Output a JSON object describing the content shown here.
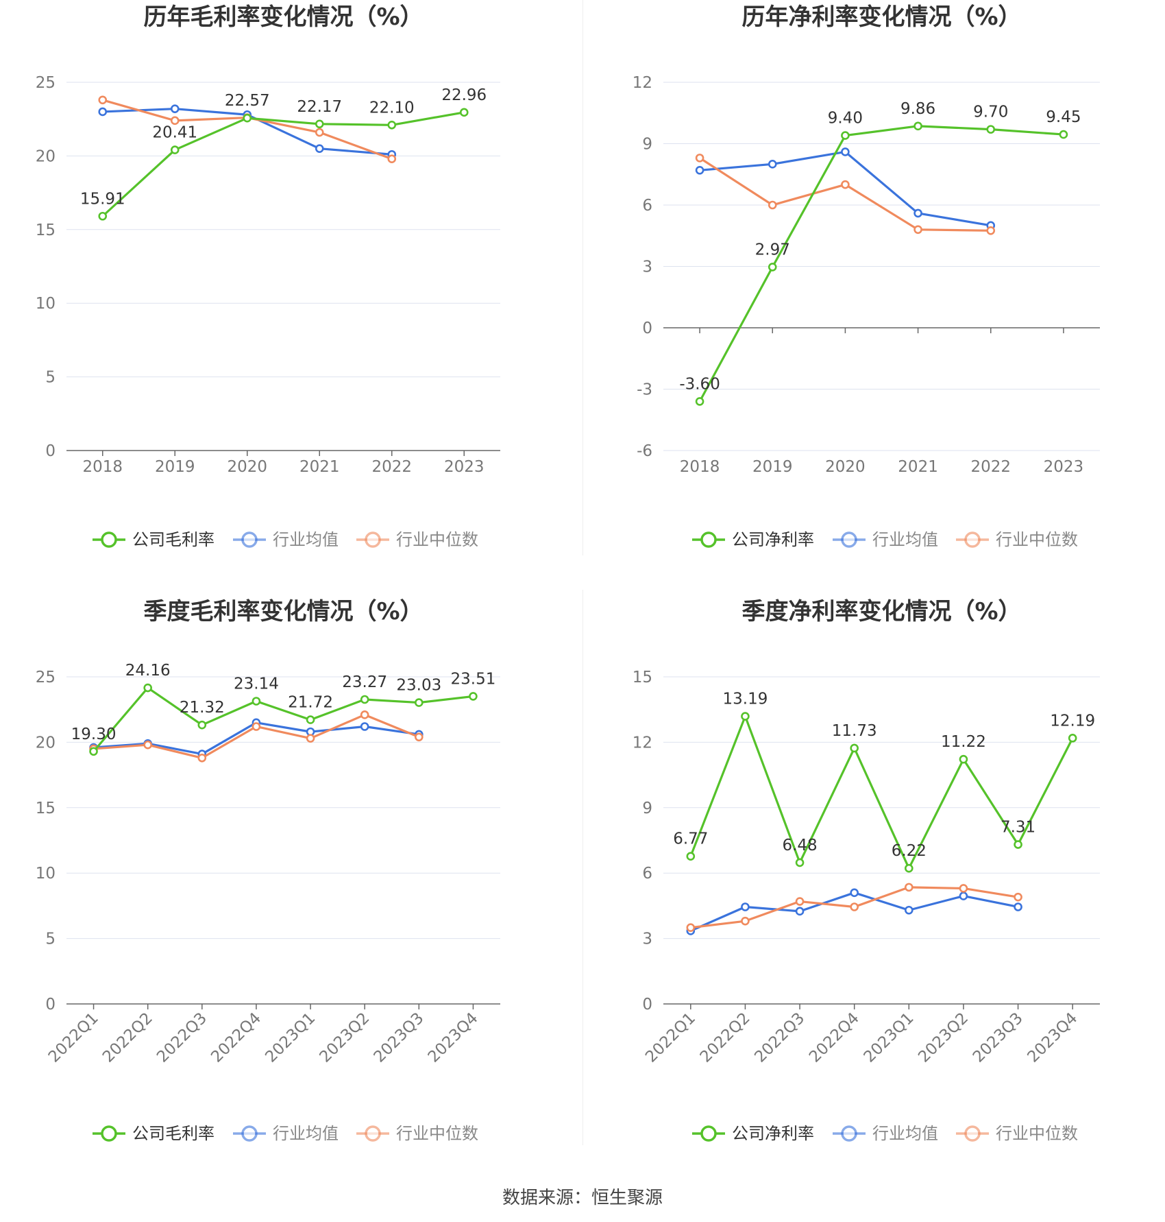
{
  "colors": {
    "company": "#55c22a",
    "industry_avg": "#3a73dc",
    "industry_median": "#f08a5d",
    "grid": "#dde2ef",
    "axis": "#666666",
    "tick_text": "#777777",
    "title_text": "#333333",
    "label_text": "#333333"
  },
  "source": {
    "text": "数据来源：恒生聚源"
  },
  "chart_data": [
    {
      "type": "line",
      "title": "历年毛利率变化情况（%）",
      "categories": [
        "2018",
        "2019",
        "2020",
        "2021",
        "2022",
        "2023"
      ],
      "ylim": [
        0,
        25
      ],
      "yticks": [
        0,
        5,
        10,
        15,
        20,
        25
      ],
      "grid": true,
      "legend_position": "bottom",
      "x_label_rotation": "none",
      "series": [
        {
          "name": "公司毛利率",
          "key": "company",
          "values": [
            15.91,
            20.41,
            22.57,
            22.17,
            22.1,
            22.96
          ],
          "labels": [
            "15.91",
            "20.41",
            "22.57",
            "22.17",
            "22.10",
            "22.96"
          ]
        },
        {
          "name": "行业均值",
          "key": "industry_avg",
          "values": [
            23.0,
            23.2,
            22.8,
            20.5,
            20.1,
            null
          ]
        },
        {
          "name": "行业中位数",
          "key": "industry_median",
          "values": [
            23.8,
            22.4,
            22.6,
            21.6,
            19.8,
            null
          ]
        }
      ]
    },
    {
      "type": "line",
      "title": "历年净利率变化情况（%）",
      "categories": [
        "2018",
        "2019",
        "2020",
        "2021",
        "2022",
        "2023"
      ],
      "ylim": [
        -6,
        12
      ],
      "yticks": [
        -6,
        -3,
        0,
        3,
        6,
        9,
        12
      ],
      "grid": true,
      "legend_position": "bottom",
      "x_label_rotation": "none",
      "series": [
        {
          "name": "公司净利率",
          "key": "company",
          "values": [
            -3.6,
            2.97,
            9.4,
            9.86,
            9.7,
            9.45
          ],
          "labels": [
            "-3.60",
            "2.97",
            "9.40",
            "9.86",
            "9.70",
            "9.45"
          ]
        },
        {
          "name": "行业均值",
          "key": "industry_avg",
          "values": [
            7.7,
            8.0,
            8.6,
            5.6,
            5.0,
            null
          ]
        },
        {
          "name": "行业中位数",
          "key": "industry_median",
          "values": [
            8.3,
            6.0,
            7.0,
            4.8,
            4.75,
            null
          ]
        }
      ]
    },
    {
      "type": "line",
      "title": "季度毛利率变化情况（%）",
      "categories": [
        "2022Q1",
        "2022Q2",
        "2022Q3",
        "2022Q4",
        "2023Q1",
        "2023Q2",
        "2023Q3",
        "2023Q4"
      ],
      "ylim": [
        0,
        25
      ],
      "yticks": [
        0,
        5,
        10,
        15,
        20,
        25
      ],
      "grid": true,
      "legend_position": "bottom",
      "x_label_rotation": "rotated",
      "series": [
        {
          "name": "公司毛利率",
          "key": "company",
          "values": [
            19.3,
            24.16,
            21.32,
            23.14,
            21.72,
            23.27,
            23.03,
            23.51
          ],
          "labels": [
            "19.30",
            "24.16",
            "21.32",
            "23.14",
            "21.72",
            "23.27",
            "23.03",
            "23.51"
          ]
        },
        {
          "name": "行业均值",
          "key": "industry_avg",
          "values": [
            19.6,
            19.9,
            19.1,
            21.5,
            20.8,
            21.2,
            20.6,
            null
          ]
        },
        {
          "name": "行业中位数",
          "key": "industry_median",
          "values": [
            19.5,
            19.8,
            18.8,
            21.2,
            20.3,
            22.1,
            20.4,
            null
          ]
        }
      ]
    },
    {
      "type": "line",
      "title": "季度净利率变化情况（%）",
      "categories": [
        "2022Q1",
        "2022Q2",
        "2022Q3",
        "2022Q4",
        "2023Q1",
        "2023Q2",
        "2023Q3",
        "2023Q4"
      ],
      "ylim": [
        0,
        15
      ],
      "yticks": [
        0,
        3,
        6,
        9,
        12,
        15
      ],
      "grid": true,
      "legend_position": "bottom",
      "x_label_rotation": "rotated",
      "series": [
        {
          "name": "公司净利率",
          "key": "company",
          "values": [
            6.77,
            13.19,
            6.48,
            11.73,
            6.22,
            11.22,
            7.31,
            12.19
          ],
          "labels": [
            "6.77",
            "13.19",
            "6.48",
            "11.73",
            "6.22",
            "11.22",
            "7.31",
            "12.19"
          ]
        },
        {
          "name": "行业均值",
          "key": "industry_avg",
          "values": [
            3.35,
            4.45,
            4.25,
            5.1,
            4.3,
            4.95,
            4.45,
            null
          ]
        },
        {
          "name": "行业中位数",
          "key": "industry_median",
          "values": [
            3.5,
            3.8,
            4.7,
            4.45,
            5.35,
            5.3,
            4.9,
            null
          ]
        }
      ]
    }
  ]
}
